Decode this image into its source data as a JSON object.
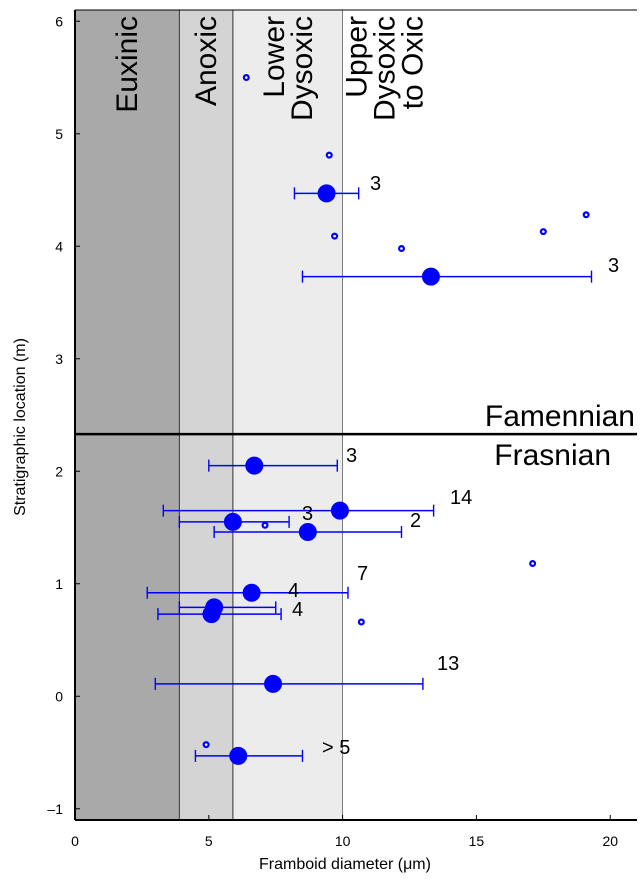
{
  "chart_data": {
    "type": "scatter",
    "xlabel": "Framboid diameter (μm)",
    "ylabel": "Stratigraphic location (m)",
    "xlim": [
      0,
      21
    ],
    "ylim": [
      -1.1,
      6.1
    ],
    "x_ticks": [
      0,
      5,
      10,
      15,
      20
    ],
    "x_tick_labels": [
      "0",
      "5",
      "10",
      "15",
      "20"
    ],
    "y_ticks": [
      -1,
      0,
      1,
      2,
      3,
      4,
      5,
      6
    ],
    "y_tick_labels": [
      "–1",
      "0",
      "1",
      "2",
      "3",
      "4",
      "5",
      "6"
    ],
    "zones": [
      {
        "label_lines": [
          "Euxinic"
        ],
        "x0": 0,
        "x1": 3.9,
        "color": "#a9a9a9"
      },
      {
        "label_lines": [
          "Anoxic"
        ],
        "x0": 3.9,
        "x1": 5.9,
        "color": "#d4d4d4"
      },
      {
        "label_lines": [
          "Lower",
          "Dysoxic"
        ],
        "x0": 5.9,
        "x1": 10,
        "color": "#ececec"
      },
      {
        "label_lines": [
          "Upper",
          "Dysoxic",
          "to Oxic"
        ],
        "x0": 10,
        "x1": 21,
        "color": "#ffffff"
      }
    ],
    "boundary": {
      "y": 2.33,
      "upper_label": "Famennian",
      "lower_label": "Frasnian"
    },
    "series": [
      {
        "marker": "large",
        "points": [
          {
            "x": 9.4,
            "y": 4.47,
            "xmin": 8.2,
            "xmax": 10.6,
            "label": "3"
          },
          {
            "x": 13.3,
            "y": 3.73,
            "xmin": 8.5,
            "xmax": 19.3,
            "label": "3"
          },
          {
            "x": 6.7,
            "y": 2.05,
            "xmin": 5.0,
            "xmax": 9.8,
            "label": "3"
          },
          {
            "x": 9.9,
            "y": 1.65,
            "xmin": 3.3,
            "xmax": 13.4,
            "label": "14"
          },
          {
            "x": 5.9,
            "y": 1.55,
            "xmin": 3.9,
            "xmax": 8.0,
            "label": "3"
          },
          {
            "x": 8.7,
            "y": 1.46,
            "xmin": 5.2,
            "xmax": 12.2,
            "label": "2"
          },
          {
            "x": 6.6,
            "y": 0.92,
            "xmin": 2.7,
            "xmax": 10.2,
            "label": "7"
          },
          {
            "x": 5.2,
            "y": 0.79,
            "xmin": 3.9,
            "xmax": 7.5,
            "label": "4"
          },
          {
            "x": 5.1,
            "y": 0.73,
            "xmin": 3.1,
            "xmax": 7.7,
            "label": "4"
          },
          {
            "x": 7.4,
            "y": 0.11,
            "xmin": 3.0,
            "xmax": 13.0,
            "label": "13"
          },
          {
            "x": 6.1,
            "y": -0.53,
            "xmin": 4.5,
            "xmax": 8.5,
            "label": "> 5"
          }
        ]
      },
      {
        "marker": "small",
        "points": [
          {
            "x": 6.4,
            "y": 5.5
          },
          {
            "x": 9.5,
            "y": 4.81
          },
          {
            "x": 19.1,
            "y": 4.28
          },
          {
            "x": 17.5,
            "y": 4.13
          },
          {
            "x": 9.7,
            "y": 4.09
          },
          {
            "x": 12.2,
            "y": 3.98
          },
          {
            "x": 7.1,
            "y": 1.52
          },
          {
            "x": 17.1,
            "y": 1.18
          },
          {
            "x": 10.7,
            "y": 0.66
          },
          {
            "x": 4.9,
            "y": -0.43
          }
        ]
      }
    ]
  }
}
